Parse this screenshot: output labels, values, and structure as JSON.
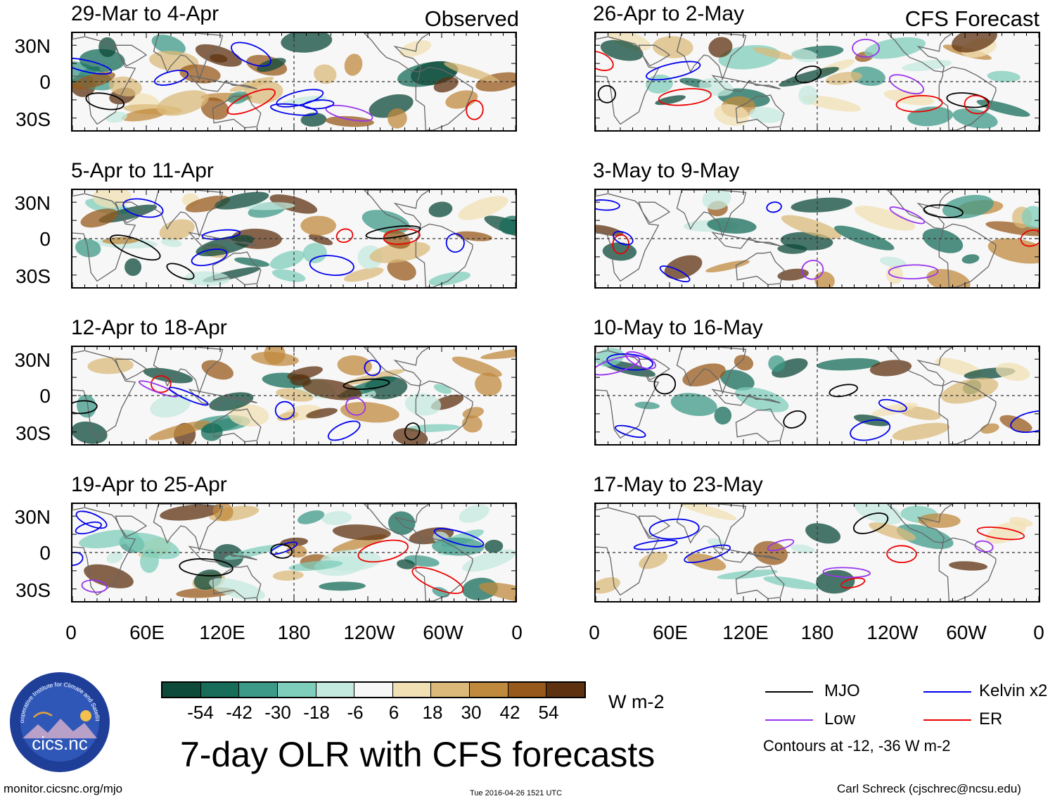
{
  "chart_data": {
    "type": "heatmap",
    "title": "7-day OLR with CFS forecasts",
    "units": "W m-2",
    "observed_label": "Observed",
    "forecast_label": "CFS Forecast",
    "lat_ticks": [
      "30N",
      "0",
      "30S"
    ],
    "lon_ticks": [
      "0",
      "60E",
      "120E",
      "180",
      "120W",
      "60W",
      "0"
    ],
    "lat_range": [
      -40,
      40
    ],
    "lon_range": [
      0,
      360
    ],
    "colorbar": {
      "ticks": [
        "-54",
        "-42",
        "-30",
        "-18",
        "-6",
        "6",
        "18",
        "30",
        "42",
        "54"
      ],
      "colors": [
        "#0d4a3a",
        "#176c5a",
        "#3d9a88",
        "#7fcdbb",
        "#c4e9df",
        "#f7f7f7",
        "#f1e0b3",
        "#dbb97a",
        "#c08a3e",
        "#97591c",
        "#5e3210"
      ]
    },
    "contour_levels": "Contours at -12, -36 W m-2",
    "legend": [
      {
        "label": "MJO",
        "color": "#000000"
      },
      {
        "label": "Kelvin x2",
        "color": "#0000ee"
      },
      {
        "label": "Low",
        "color": "#9933ee"
      },
      {
        "label": "ER",
        "color": "#ee0000"
      }
    ],
    "observed_periods": [
      "29-Mar to 4-Apr",
      "5-Apr to 11-Apr",
      "12-Apr to 18-Apr",
      "19-Apr to 25-Apr"
    ],
    "forecast_periods": [
      "26-Apr to 2-May",
      "3-May to 9-May",
      "10-May to 16-May",
      "17-May to 23-May"
    ]
  },
  "footer": {
    "url": "monitor.cicsnc.org/mjo",
    "timestamp": "Tue 2016-04-26 1521 UTC",
    "credit": "Carl Schreck (cjschrec@ncsu.edu)"
  },
  "logo": {
    "name": "cics.nc",
    "arc_text": "Cooperative Institute for Climate and Satellites"
  }
}
